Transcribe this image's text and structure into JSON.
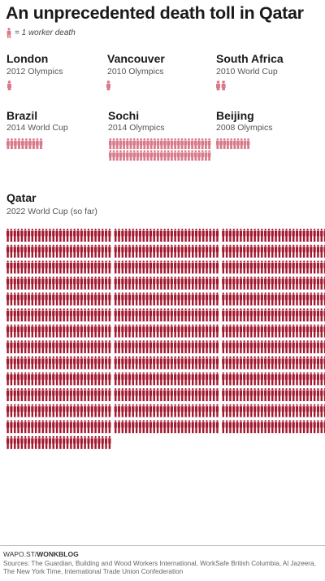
{
  "title": "An unprecedented death toll in Qatar",
  "legend": {
    "icon": "worker-figure-icon",
    "text": "= 1 worker death"
  },
  "colors": {
    "past_events": "#d87a8a",
    "qatar": "#a3192f"
  },
  "chart_data": {
    "type": "pictogram",
    "unit": "1 worker death",
    "events": [
      {
        "name": "London",
        "event": "2012 Olympics",
        "deaths": 1
      },
      {
        "name": "Vancouver",
        "event": "2010 Olympics",
        "deaths": 1
      },
      {
        "name": "South Africa",
        "event": "2010 World Cup",
        "deaths": 2
      },
      {
        "name": "Brazil",
        "event": "2014 World Cup",
        "deaths": 10
      },
      {
        "name": "Sochi",
        "event": "2014 Olympics",
        "deaths": 60
      },
      {
        "name": "Beijing",
        "event": "2008 Olympics",
        "deaths": 10
      },
      {
        "name": "Qatar",
        "event": "2022 World Cup (so far)",
        "deaths": 1200
      }
    ]
  },
  "footer": {
    "url_prefix": "WAPO.ST/",
    "url_brand": "WONKBLOG",
    "sources": "Sources: The Guardian, Building and Wood Workers International, WorkSafe British Columbia, Al Jazeera, The New York Time, International Trade Union Confederation"
  }
}
